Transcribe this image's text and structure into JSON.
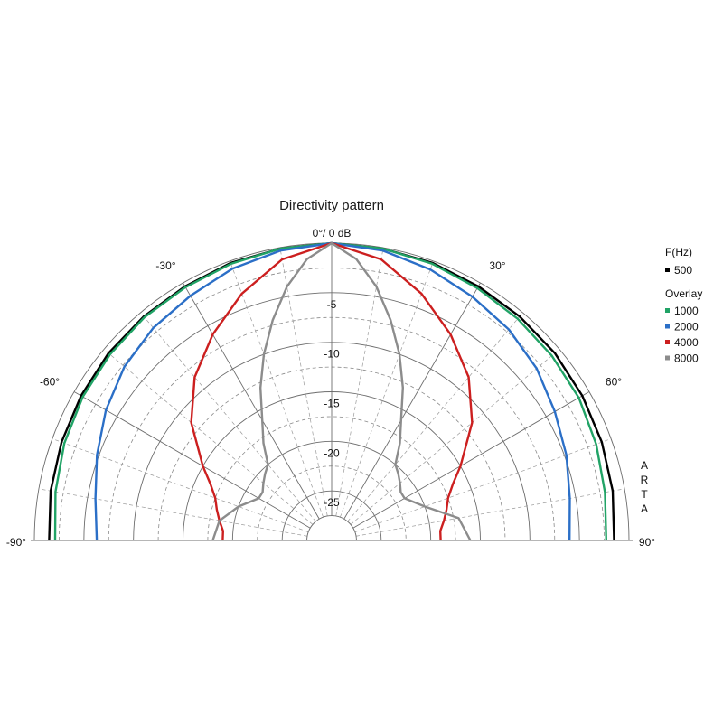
{
  "chart_data": {
    "type": "polar",
    "title": "Directivity pattern",
    "radial_unit_label": "0°/ 0 dB",
    "angle_range": [
      -90,
      90
    ],
    "radial_range_db": [
      -30,
      0
    ],
    "radial_tick_labels": [
      "-5",
      "-10",
      "-15",
      "-20",
      "-25"
    ],
    "radial_ticks_db": [
      -5,
      -10,
      -15,
      -20,
      -25
    ],
    "angle_tick_labels": [
      {
        "angle": -90,
        "label": "-90°"
      },
      {
        "angle": -60,
        "label": "-60°"
      },
      {
        "angle": -30,
        "label": "-30°"
      },
      {
        "angle": 30,
        "label": "30°"
      },
      {
        "angle": 60,
        "label": "60°"
      },
      {
        "angle": 90,
        "label": "90°"
      }
    ],
    "grid": true,
    "legend": {
      "title": "F(Hz)",
      "overlay_label": "Overlay",
      "placement": "right"
    },
    "watermark": "ARTA",
    "series": [
      {
        "name": "500",
        "color": "#000000",
        "angles": [
          -90,
          -80,
          -70,
          -60,
          -50,
          -40,
          -30,
          -20,
          -10,
          0,
          10,
          20,
          30,
          40,
          50,
          60,
          70,
          80,
          90
        ],
        "db": [
          -1.5,
          -1.2,
          -1.0,
          -0.8,
          -0.6,
          -0.5,
          -0.4,
          -0.2,
          -0.1,
          0,
          -0.1,
          -0.2,
          -0.4,
          -0.5,
          -0.6,
          -0.8,
          -1.0,
          -1.2,
          -1.5
        ]
      },
      {
        "name": "1000",
        "color": "#21a366",
        "angles": [
          -90,
          -80,
          -70,
          -60,
          -50,
          -40,
          -30,
          -20,
          -10,
          0,
          10,
          20,
          30,
          40,
          50,
          60,
          70,
          80,
          90
        ],
        "db": [
          -2.1,
          -1.7,
          -1.3,
          -1.0,
          -0.8,
          -0.6,
          -0.5,
          -0.3,
          -0.1,
          0,
          -0.1,
          -0.3,
          -0.6,
          -0.8,
          -1.0,
          -1.2,
          -1.6,
          -2.0,
          -2.3
        ]
      },
      {
        "name": "2000",
        "color": "#2b6fc7",
        "angles": [
          -90,
          -80,
          -70,
          -60,
          -50,
          -40,
          -30,
          -20,
          -10,
          0,
          10,
          20,
          30,
          40,
          50,
          60,
          70,
          80,
          90
        ],
        "db": [
          -6.3,
          -5.8,
          -4.8,
          -3.7,
          -2.7,
          -2.0,
          -1.5,
          -0.8,
          -0.3,
          0,
          -0.3,
          -0.9,
          -1.6,
          -2.2,
          -3.0,
          -4.0,
          -4.8,
          -5.6,
          -6.0
        ]
      },
      {
        "name": "4000",
        "color": "#cc1f1f",
        "angles": [
          -90,
          -85,
          -80,
          -75,
          -70,
          -65,
          -60,
          -50,
          -40,
          -30,
          -20,
          -10,
          0,
          10,
          20,
          30,
          40,
          50,
          60,
          65,
          70,
          75,
          80,
          85,
          90
        ],
        "db": [
          -19,
          -19,
          -18.5,
          -18,
          -17.5,
          -16.5,
          -15,
          -11.5,
          -8.5,
          -6,
          -3.5,
          -1.2,
          0,
          -1.2,
          -3.5,
          -6,
          -8.5,
          -11.5,
          -15,
          -16.5,
          -17.5,
          -18,
          -18.5,
          -19,
          -19
        ]
      },
      {
        "name": "8000",
        "color": "#8c8c8c",
        "angles": [
          -90,
          -80,
          -70,
          -60,
          -55,
          -50,
          -45,
          -40,
          -35,
          -30,
          -25,
          -20,
          -15,
          -10,
          -5,
          0,
          5,
          10,
          15,
          20,
          25,
          30,
          35,
          40,
          45,
          50,
          55,
          60,
          70,
          80,
          90
        ],
        "db": [
          -18,
          -18.5,
          -20,
          -21.5,
          -21.5,
          -21,
          -20.5,
          -20,
          -18,
          -16,
          -13,
          -10,
          -7,
          -4,
          -1.5,
          0,
          -1.5,
          -4,
          -7,
          -10,
          -13,
          -16,
          -18,
          -20,
          -20.5,
          -21,
          -21.5,
          -21.5,
          -20,
          -17,
          -16
        ]
      }
    ]
  }
}
